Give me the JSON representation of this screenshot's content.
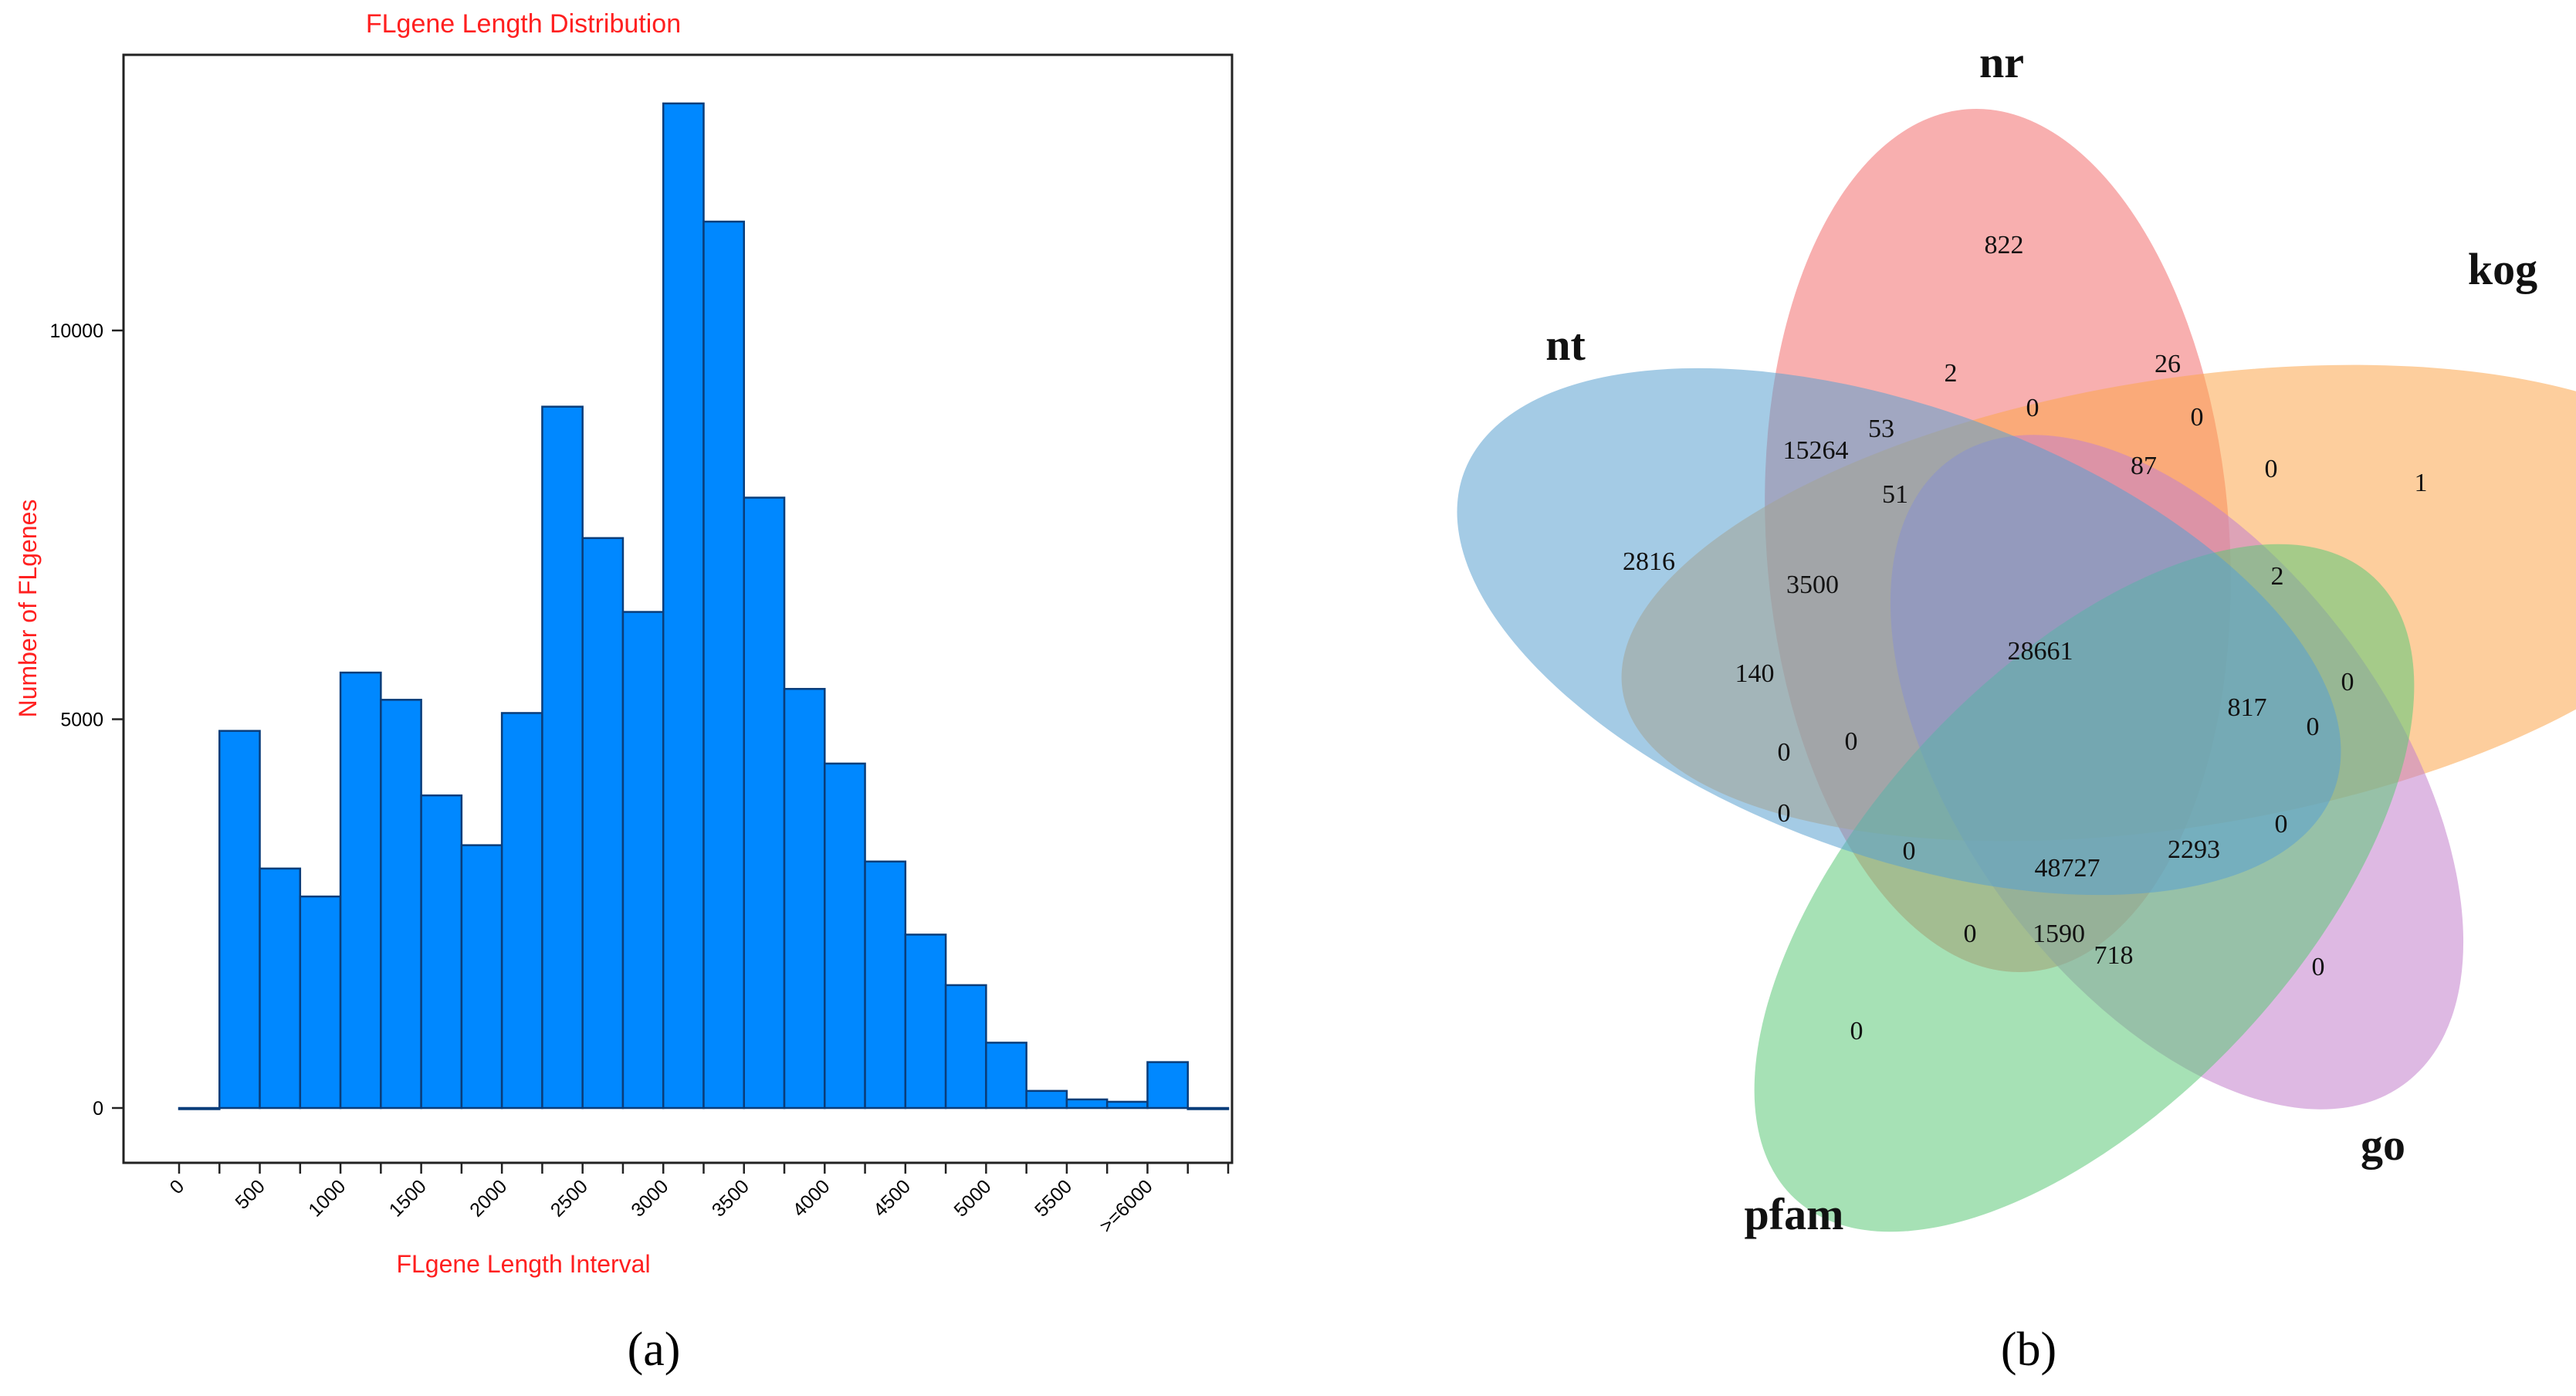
{
  "chart_data": [
    {
      "type": "bar",
      "title": "FLgene Length Distribution",
      "xlabel": "FLgene Length Interval",
      "ylabel": "Number of FLgenes",
      "x_tick_labels": [
        "0",
        "500",
        "1000",
        "1500",
        "2000",
        "2500",
        "3000",
        "3500",
        "4000",
        "4500",
        "5000",
        "5500",
        ">=6000"
      ],
      "y_ticks": [
        0,
        5000,
        10000
      ],
      "y_tick_labels": [
        "0",
        "5000",
        "10000"
      ],
      "ylim": [
        -650,
        13600
      ],
      "bin_width": 250,
      "bins_start": [
        0,
        250,
        500,
        750,
        1000,
        1250,
        1500,
        1750,
        2000,
        2250,
        2500,
        2750,
        3000,
        3250,
        3500,
        3750,
        4000,
        4250,
        4500,
        4750,
        5000,
        5250,
        5500,
        5750,
        6000,
        6250
      ],
      "values": [
        0,
        4850,
        3080,
        2720,
        5600,
        5250,
        4020,
        3380,
        5080,
        9020,
        7330,
        6380,
        12920,
        11400,
        7850,
        5390,
        4430,
        3170,
        2230,
        1580,
        840,
        220,
        110,
        80,
        590,
        0
      ],
      "caption": "(a)"
    },
    {
      "type": "venn",
      "sets": [
        {
          "name": "nr",
          "color": "#f26d6d"
        },
        {
          "name": "kog",
          "color": "#fba64d"
        },
        {
          "name": "go",
          "color": "#c27fcc"
        },
        {
          "name": "pfam",
          "color": "#5cc878"
        },
        {
          "name": "nt",
          "color": "#5aa0cf"
        }
      ],
      "region_values": [
        {
          "regions": "nr",
          "value": "822"
        },
        {
          "regions": "kog",
          "value": "1"
        },
        {
          "regions": "go",
          "value": "0"
        },
        {
          "regions": "pfam",
          "value": "0"
        },
        {
          "regions": "nt",
          "value": "2816"
        },
        {
          "regions": "nr|kog",
          "value": "26"
        },
        {
          "regions": "nr|go",
          "value": "2"
        },
        {
          "regions": "nt|nr",
          "value": "15264"
        },
        {
          "regions": "nr|kog|go",
          "value": "0"
        },
        {
          "regions": "nt|nr|go",
          "value": "53"
        },
        {
          "regions": "kog|outer",
          "value": "0"
        },
        {
          "regions": "kog|go",
          "value": "0"
        },
        {
          "regions": "nr|kog|go|nt",
          "value": "87"
        },
        {
          "regions": "nt|nr|pfam",
          "value": "51"
        },
        {
          "regions": "nt|nr|kog",
          "value": "3500"
        },
        {
          "regions": "kog|go|nt",
          "value": "2"
        },
        {
          "regions": "all",
          "value": "28661"
        },
        {
          "regions": "nt|kog",
          "value": "140"
        },
        {
          "regions": "nr|kog|go|pfam",
          "value": "817"
        },
        {
          "regions": "kog|go|lower",
          "value": "0"
        },
        {
          "regions": "go|kog|pfam",
          "value": "0"
        },
        {
          "regions": "nt|pfam|kog",
          "value": "0"
        },
        {
          "regions": "nt|pfam|kog|go",
          "value": "0"
        },
        {
          "regions": "nt|pfam",
          "value": "0"
        },
        {
          "regions": "nt|pfam|nr",
          "value": "0"
        },
        {
          "regions": "nr|pfam|go|nt",
          "value": "48727"
        },
        {
          "regions": "nr|go|pfam|kog",
          "value": "2293"
        },
        {
          "regions": "go|nt",
          "value": "0"
        },
        {
          "regions": "pfam|kog|nr",
          "value": "0"
        },
        {
          "regions": "nr|pfam|go",
          "value": "1590"
        },
        {
          "regions": "pfam|go",
          "value": "718"
        }
      ],
      "caption": "(b)"
    }
  ]
}
